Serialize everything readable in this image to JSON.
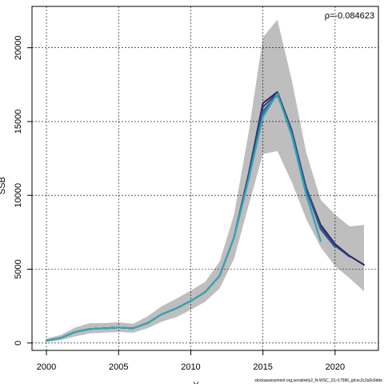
{
  "chart_data": {
    "type": "line",
    "title": "",
    "xlabel": "Y",
    "ylabel": "SSB",
    "xlim": [
      1999,
      2023
    ],
    "ylim": [
      -500,
      22800
    ],
    "x_ticks": [
      2000,
      2005,
      2010,
      2015,
      2020
    ],
    "y_ticks": [
      0,
      5000,
      10000,
      15000,
      20000
    ],
    "grid": true,
    "annotation": "ρ=-0.084623",
    "footer": "stockassessment.org,sensitivity2_N-WSC_23,r17586_git:ec2c2a0c6dde",
    "band": {
      "x": [
        2000,
        2001,
        2002,
        2003,
        2004,
        2005,
        2006,
        2007,
        2008,
        2009,
        2010,
        2011,
        2012,
        2013,
        2014,
        2015,
        2016,
        2017,
        2018,
        2019,
        2020,
        2021,
        2022
      ],
      "upper": [
        300,
        550,
        1050,
        1350,
        1350,
        1400,
        1300,
        1800,
        2500,
        3000,
        3550,
        4150,
        5500,
        8700,
        14200,
        20700,
        21900,
        17800,
        12900,
        9700,
        8700,
        7900,
        8000
      ],
      "lower": [
        80,
        200,
        450,
        650,
        700,
        750,
        700,
        1000,
        1450,
        1750,
        2250,
        2800,
        3700,
        5700,
        9300,
        12800,
        13000,
        10900,
        8400,
        6500,
        5200,
        4400,
        3500
      ]
    },
    "series": [
      {
        "color": "#27235e",
        "x": [
          2000,
          2001,
          2002,
          2003,
          2004,
          2005,
          2006,
          2007,
          2008,
          2009,
          2010,
          2011,
          2012,
          2013,
          2014,
          2015,
          2016,
          2017,
          2018,
          2019,
          2020,
          2021,
          2022
        ],
        "values": [
          150,
          350,
          750,
          950,
          1000,
          1050,
          1000,
          1350,
          1950,
          2350,
          2850,
          3450,
          4550,
          7150,
          11400,
          16250,
          17000,
          14400,
          10500,
          8000,
          6700,
          5900,
          5300
        ]
      },
      {
        "color": "#2a3f80",
        "x": [
          2000,
          2001,
          2002,
          2003,
          2004,
          2005,
          2006,
          2007,
          2008,
          2009,
          2010,
          2011,
          2012,
          2013,
          2014,
          2015,
          2016,
          2017,
          2018,
          2019,
          2020,
          2021
        ],
        "values": [
          150,
          350,
          750,
          950,
          1000,
          1050,
          1000,
          1350,
          1950,
          2350,
          2850,
          3450,
          4550,
          7150,
          11300,
          16000,
          16900,
          14300,
          10500,
          7900,
          6600,
          5850
        ]
      },
      {
        "color": "#2e5c93",
        "x": [
          2000,
          2001,
          2002,
          2003,
          2004,
          2005,
          2006,
          2007,
          2008,
          2009,
          2010,
          2011,
          2012,
          2013,
          2014,
          2015,
          2016,
          2017,
          2018,
          2019,
          2020
        ],
        "values": [
          150,
          350,
          750,
          950,
          1000,
          1050,
          1000,
          1350,
          1950,
          2350,
          2850,
          3450,
          4550,
          7150,
          11200,
          15700,
          16800,
          14300,
          10400,
          7700,
          6500
        ]
      },
      {
        "color": "#2f7aa0",
        "x": [
          2000,
          2001,
          2002,
          2003,
          2004,
          2005,
          2006,
          2007,
          2008,
          2009,
          2010,
          2011,
          2012,
          2013,
          2014,
          2015,
          2016,
          2017,
          2018,
          2019
        ],
        "values": [
          150,
          350,
          750,
          950,
          1000,
          1050,
          1000,
          1350,
          1950,
          2350,
          2850,
          3450,
          4550,
          7150,
          11100,
          15500,
          16900,
          14200,
          10100,
          6900
        ]
      },
      {
        "color": "#3aa6b4",
        "x": [
          2000,
          2001,
          2002,
          2003,
          2004,
          2005,
          2006,
          2007,
          2008,
          2009,
          2010,
          2011,
          2012,
          2013,
          2014,
          2015,
          2016,
          2017,
          2018,
          2019
        ],
        "values": [
          150,
          350,
          750,
          950,
          1000,
          1050,
          1000,
          1350,
          1950,
          2350,
          2850,
          3450,
          4550,
          7150,
          11000,
          15300,
          16900,
          14000,
          10000,
          6900
        ]
      }
    ]
  }
}
